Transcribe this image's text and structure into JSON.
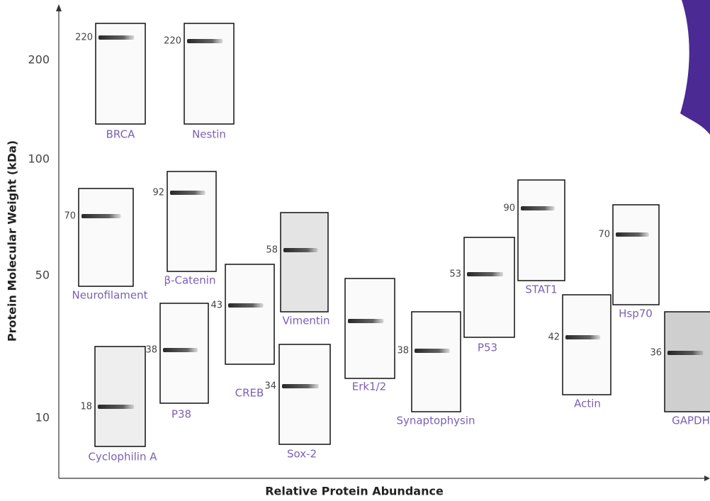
{
  "axes": {
    "y_title": "Protein Molecular Weight (kDa)",
    "x_title": "Relative Protein Abundance",
    "y_labels": [
      200,
      100,
      50,
      10
    ]
  },
  "blots": [
    {
      "name": "BRCA",
      "kda": 220
    },
    {
      "name": "Nestin",
      "kda": 220
    },
    {
      "name": "Neurofilament",
      "kda": 70
    },
    {
      "name": "β-Catenin",
      "kda": 92
    },
    {
      "name": "Cyclophilin A",
      "kda": 18
    },
    {
      "name": "P38",
      "kda": 38
    },
    {
      "name": "CREB",
      "kda": 43
    },
    {
      "name": "Vimentin",
      "kda": 58
    },
    {
      "name": "Sox-2",
      "kda": 34
    },
    {
      "name": "Erk1/2"
    },
    {
      "name": "Synaptophysin",
      "kda": 38
    },
    {
      "name": "P53",
      "kda": 53
    },
    {
      "name": "STAT1",
      "kda": 90
    },
    {
      "name": "Actin",
      "kda": 42
    },
    {
      "name": "Hsp70",
      "kda": 70
    },
    {
      "name": "GAPDH",
      "kda": 36
    }
  ]
}
